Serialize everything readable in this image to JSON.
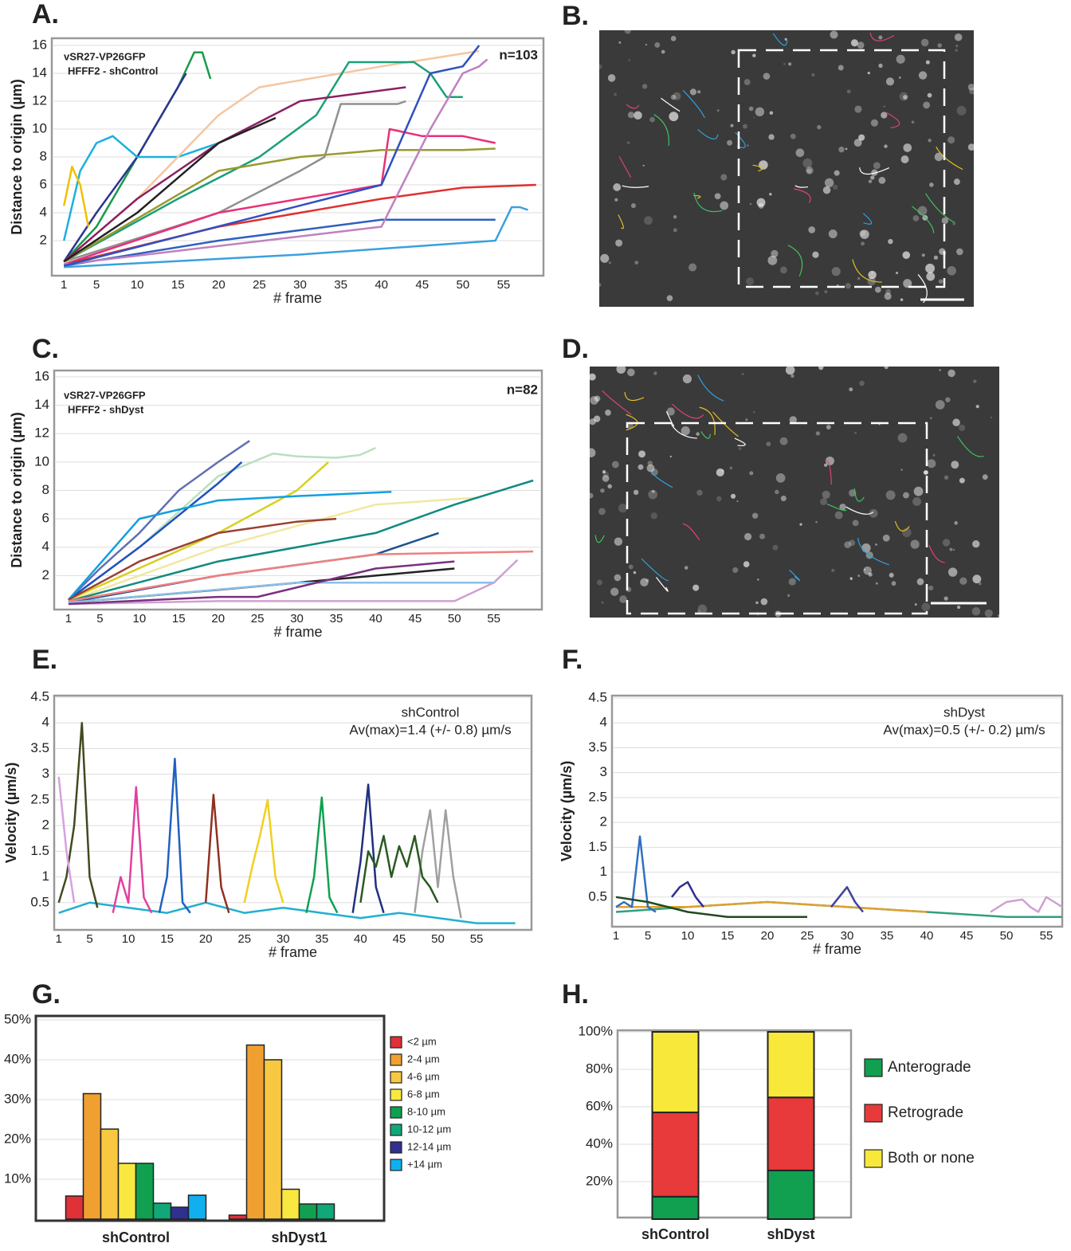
{
  "chart_data": [
    {
      "type": "line",
      "panel_label": "A.",
      "x_label": "# frame",
      "y_label": "Distance to origin (µm)",
      "annotations": [
        "vSR27-VP26GFP",
        "HFFF2 - shControl",
        "n=103"
      ],
      "xlim": [
        0,
        60
      ],
      "ylim": [
        0,
        16
      ],
      "xticks": [
        1,
        5,
        10,
        15,
        20,
        25,
        30,
        35,
        40,
        45,
        50,
        55
      ],
      "yticks": [
        2,
        4,
        6,
        8,
        10,
        12,
        14,
        16
      ],
      "grid": true,
      "series": [
        {
          "color": "#1a9a4a",
          "x": [
            1,
            5,
            10,
            15,
            17,
            18,
            19
          ],
          "values": [
            0.5,
            3,
            8,
            13,
            15.5,
            15.5,
            13.6
          ]
        },
        {
          "color": "#2c3590",
          "x": [
            1,
            5,
            10,
            14,
            16
          ],
          "values": [
            0.5,
            4,
            8,
            12,
            14
          ]
        },
        {
          "color": "#1ab0e0",
          "x": [
            1,
            3,
            5,
            7,
            10,
            15,
            20
          ],
          "values": [
            2,
            7,
            9,
            9.5,
            8,
            8,
            9
          ]
        },
        {
          "color": "#f5c6a0",
          "x": [
            1,
            10,
            20,
            25,
            30,
            40,
            52
          ],
          "values": [
            0.5,
            5,
            11,
            13,
            13.5,
            14.5,
            15.6
          ]
        },
        {
          "color": "#1aa07a",
          "x": [
            1,
            15,
            25,
            32,
            36,
            44,
            46,
            48,
            50
          ],
          "values": [
            0.5,
            5,
            8,
            11,
            14.8,
            14.8,
            14,
            12.3,
            12.3
          ]
        },
        {
          "color": "#909090",
          "x": [
            1,
            20,
            30,
            33,
            35,
            42,
            43
          ],
          "values": [
            0.5,
            4,
            7,
            8,
            11.8,
            11.8,
            12
          ]
        },
        {
          "color": "#e8307a",
          "x": [
            1,
            20,
            40,
            41,
            45,
            50,
            54
          ],
          "values": [
            0.3,
            4,
            6,
            10,
            9.5,
            9.5,
            9
          ]
        },
        {
          "color": "#9a9a30",
          "x": [
            1,
            20,
            30,
            40,
            50,
            54
          ],
          "values": [
            0.5,
            7,
            8,
            8.5,
            8.5,
            8.6
          ]
        },
        {
          "color": "#e03030",
          "x": [
            1,
            20,
            40,
            50,
            59
          ],
          "values": [
            0.3,
            3,
            5,
            5.8,
            6
          ]
        },
        {
          "color": "#8a2060",
          "x": [
            1,
            10,
            20,
            30,
            43
          ],
          "values": [
            0.5,
            5,
            9,
            12,
            13
          ]
        },
        {
          "color": "#3060c0",
          "x": [
            1,
            20,
            40,
            54
          ],
          "values": [
            0.2,
            2,
            3.5,
            3.5
          ]
        },
        {
          "color": "#3aa0e0",
          "x": [
            1,
            30,
            54,
            56,
            57,
            58
          ],
          "values": [
            0.1,
            1,
            2,
            4.4,
            4.4,
            4.2
          ]
        },
        {
          "color": "#c080c0",
          "x": [
            1,
            40,
            46,
            50,
            52,
            53
          ],
          "values": [
            0.3,
            3,
            10,
            14,
            14.5,
            15
          ]
        },
        {
          "color": "#222222",
          "x": [
            1,
            10,
            20,
            27
          ],
          "values": [
            0.5,
            4,
            9,
            10.8
          ]
        },
        {
          "color": "#3050c0",
          "x": [
            1,
            40,
            46,
            50,
            52
          ],
          "values": [
            0.2,
            6,
            14,
            14.5,
            16
          ]
        },
        {
          "color": "#f0c000",
          "x": [
            1,
            2,
            3,
            4
          ],
          "values": [
            4.5,
            7.3,
            6,
            3
          ]
        }
      ]
    },
    {
      "type": "image",
      "panel_label": "B."
    },
    {
      "type": "line",
      "panel_label": "C.",
      "x_label": "# frame",
      "y_label": "Distance to origin (µm)",
      "annotations": [
        "vSR27-VP26GFP",
        "HFFF2 - shDyst",
        "n=82"
      ],
      "xlim": [
        0,
        61
      ],
      "ylim": [
        0,
        16
      ],
      "xticks": [
        1,
        5,
        10,
        15,
        20,
        25,
        30,
        35,
        40,
        45,
        50,
        55
      ],
      "yticks": [
        2,
        4,
        6,
        8,
        10,
        12,
        14,
        16
      ],
      "grid": true,
      "series": [
        {
          "color": "#6070b0",
          "x": [
            1,
            5,
            10,
            15,
            20,
            24
          ],
          "values": [
            0.3,
            2.5,
            5,
            8,
            10,
            11.5
          ]
        },
        {
          "color": "#b8e0c0",
          "x": [
            1,
            10,
            20,
            27,
            30,
            35,
            38,
            40
          ],
          "values": [
            0.3,
            4,
            9,
            10.6,
            10.4,
            10.3,
            10.5,
            11
          ]
        },
        {
          "color": "#2050c0",
          "x": [
            1,
            10,
            20,
            23
          ],
          "values": [
            0.3,
            4,
            8.5,
            10
          ]
        },
        {
          "color": "#d8d020",
          "x": [
            1,
            20,
            30,
            34
          ],
          "values": [
            0.3,
            5,
            8,
            10
          ]
        },
        {
          "color": "#10a0e0",
          "x": [
            1,
            10,
            20,
            30,
            42
          ],
          "values": [
            0.3,
            6,
            7.3,
            7.6,
            7.9
          ]
        },
        {
          "color": "#f0e8a0",
          "x": [
            1,
            20,
            40,
            53
          ],
          "values": [
            0.2,
            4,
            7,
            7.5
          ]
        },
        {
          "color": "#108a80",
          "x": [
            1,
            20,
            40,
            50,
            60
          ],
          "values": [
            0.2,
            3,
            5,
            7,
            8.7
          ]
        },
        {
          "color": "#9a4030",
          "x": [
            1,
            10,
            20,
            30,
            35
          ],
          "values": [
            0.3,
            3,
            5,
            5.8,
            6
          ]
        },
        {
          "color": "#205090",
          "x": [
            1,
            20,
            40,
            48
          ],
          "values": [
            0.1,
            2,
            3.5,
            5
          ]
        },
        {
          "color": "#222222",
          "x": [
            1,
            20,
            40,
            50
          ],
          "values": [
            0.1,
            1,
            2,
            2.5
          ]
        },
        {
          "color": "#d0a0d0",
          "x": [
            1,
            20,
            50,
            55,
            58
          ],
          "values": [
            0,
            0.2,
            0.2,
            1.5,
            3.1
          ]
        },
        {
          "color": "#f08080",
          "x": [
            1,
            20,
            40,
            60
          ],
          "values": [
            0.2,
            2,
            3.5,
            3.7
          ]
        },
        {
          "color": "#8ac0e8",
          "x": [
            1,
            30,
            45,
            55
          ],
          "values": [
            0.1,
            1.5,
            1.5,
            1.5
          ]
        },
        {
          "color": "#7a3080",
          "x": [
            1,
            20,
            25,
            40,
            50
          ],
          "values": [
            0,
            0.5,
            0.5,
            2.5,
            3
          ]
        }
      ]
    },
    {
      "type": "image",
      "panel_label": "D."
    },
    {
      "type": "line",
      "panel_label": "E.",
      "x_label": "# frame",
      "y_label": "Velocity (µm/s)",
      "annotations": [
        "shControl",
        "Av(max)=1.4 (+/- 0.8) µm/s"
      ],
      "xlim": [
        0,
        62
      ],
      "ylim": [
        0,
        4.5
      ],
      "xticks": [
        1,
        5,
        10,
        15,
        20,
        25,
        30,
        35,
        40,
        45,
        50,
        55
      ],
      "yticks": [
        0.5,
        1,
        1.5,
        2,
        2.5,
        3,
        3.5,
        4,
        4.5
      ],
      "grid": true,
      "series": [
        {
          "color": "#20b0d0",
          "x": [
            1,
            5,
            10,
            15,
            20,
            25,
            30,
            35,
            40,
            45,
            50,
            55,
            60
          ],
          "values": [
            0.3,
            0.5,
            0.4,
            0.3,
            0.5,
            0.3,
            0.4,
            0.3,
            0.2,
            0.3,
            0.2,
            0.1,
            0.1
          ]
        },
        {
          "color": "#404a20",
          "x": [
            1,
            2,
            3,
            4,
            5,
            6
          ],
          "values": [
            0.5,
            1,
            2,
            4,
            1,
            0.4
          ]
        },
        {
          "color": "#e040a0",
          "x": [
            8,
            9,
            10,
            11,
            12,
            13
          ],
          "values": [
            0.3,
            1,
            0.5,
            2.75,
            0.6,
            0.3
          ]
        },
        {
          "color": "#2060c0",
          "x": [
            14,
            15,
            16,
            17,
            18
          ],
          "values": [
            0.3,
            1,
            3.3,
            0.5,
            0.3
          ]
        },
        {
          "color": "#10a050",
          "x": [
            33,
            34,
            35,
            36,
            37
          ],
          "values": [
            0.3,
            1,
            2.55,
            0.6,
            0.3
          ]
        },
        {
          "color": "#203080",
          "x": [
            39,
            40,
            41,
            42,
            43
          ],
          "values": [
            0.3,
            1.3,
            2.8,
            0.8,
            0.3
          ]
        },
        {
          "color": "#a0a0a0",
          "x": [
            47,
            48,
            49,
            50,
            51,
            52,
            53
          ],
          "values": [
            0.3,
            1.5,
            2.3,
            0.8,
            2.3,
            1,
            0.2
          ]
        },
        {
          "color": "#f0d020",
          "x": [
            25,
            26,
            27,
            28,
            29,
            30
          ],
          "values": [
            0.5,
            1.2,
            1.8,
            2.5,
            1,
            0.5
          ]
        },
        {
          "color": "#903020",
          "x": [
            20,
            21,
            22,
            23
          ],
          "values": [
            0.5,
            2.6,
            0.8,
            0.3
          ]
        },
        {
          "color": "#d8a0e0",
          "x": [
            1,
            2,
            3
          ],
          "values": [
            2.95,
            1.5,
            0.5
          ]
        },
        {
          "color": "#2a5a20",
          "x": [
            40,
            41,
            42,
            43,
            44,
            45,
            46,
            47,
            48,
            49,
            50
          ],
          "values": [
            0.5,
            1.5,
            1.2,
            1.8,
            1,
            1.6,
            1.2,
            1.8,
            1,
            0.8,
            0.5
          ]
        }
      ]
    },
    {
      "type": "line",
      "panel_label": "F.",
      "x_label": "# frame",
      "y_label": "Velocity (µm/s)",
      "annotations": [
        "shDyst",
        "Av(max)=0.5 (+/- 0.2) µm/s"
      ],
      "xlim": [
        0.5,
        57
      ],
      "ylim": [
        0,
        4.5
      ],
      "xticks": [
        1,
        5,
        10,
        15,
        20,
        25,
        30,
        35,
        40,
        45,
        50,
        55
      ],
      "yticks": [
        0.5,
        1,
        1.5,
        2,
        2.5,
        3,
        3.5,
        4,
        4.5
      ],
      "grid": true,
      "series": [
        {
          "color": "#30a080",
          "x": [
            1,
            10,
            20,
            30,
            40,
            50,
            57
          ],
          "values": [
            0.2,
            0.3,
            0.4,
            0.3,
            0.2,
            0.1,
            0.1
          ]
        },
        {
          "color": "#e0a030",
          "x": [
            1,
            10,
            20,
            30,
            40
          ],
          "values": [
            0.3,
            0.3,
            0.4,
            0.3,
            0.2
          ]
        },
        {
          "color": "#3070c0",
          "x": [
            1,
            2,
            3,
            4,
            5,
            6
          ],
          "values": [
            0.3,
            0.4,
            0.3,
            1.72,
            0.3,
            0.2
          ]
        },
        {
          "color": "#303090",
          "x": [
            8,
            9,
            10,
            11,
            12
          ],
          "values": [
            0.5,
            0.7,
            0.8,
            0.5,
            0.3
          ]
        },
        {
          "color": "#d0a0d0",
          "x": [
            48,
            50,
            52,
            53,
            54,
            55,
            56,
            57
          ],
          "values": [
            0.2,
            0.4,
            0.45,
            0.3,
            0.2,
            0.5,
            0.4,
            0.3
          ]
        },
        {
          "color": "#204a20",
          "x": [
            1,
            5,
            10,
            15,
            20,
            25
          ],
          "values": [
            0.5,
            0.4,
            0.2,
            0.1,
            0.1,
            0.1
          ]
        },
        {
          "color": "#4040a0",
          "x": [
            28,
            29,
            30,
            31,
            32
          ],
          "values": [
            0.3,
            0.5,
            0.7,
            0.4,
            0.2
          ]
        }
      ]
    },
    {
      "type": "bar",
      "panel_label": "G.",
      "categories": [
        "shControl",
        "shDyst1"
      ],
      "ylim": [
        0,
        50
      ],
      "yticks": [
        {
          "value": 10,
          "label": "10%"
        },
        {
          "value": 20,
          "label": "20%"
        },
        {
          "value": 30,
          "label": "30%"
        },
        {
          "value": 40,
          "label": "40%"
        },
        {
          "value": 50,
          "label": "50%"
        }
      ],
      "grid": true,
      "series": [
        {
          "name": "<2 µm",
          "color": "#e03038",
          "values": [
            5.8,
            1
          ]
        },
        {
          "name": "2-4 µm",
          "color": "#f0a030",
          "values": [
            31.5,
            43.7
          ]
        },
        {
          "name": "4-6 µm",
          "color": "#f8c840",
          "values": [
            22.6,
            40
          ]
        },
        {
          "name": "6-8 µm",
          "color": "#f8e840",
          "values": [
            14,
            7.5
          ]
        },
        {
          "name": "8-10 µm",
          "color": "#10a050",
          "values": [
            14,
            3.8
          ]
        },
        {
          "name": "10-12 µm",
          "color": "#10a878",
          "values": [
            4,
            3.8
          ]
        },
        {
          "name": "12-14 µm",
          "color": "#303090",
          "values": [
            3,
            0
          ]
        },
        {
          "name": "+14 µm",
          "color": "#10b0f0",
          "values": [
            6,
            0
          ]
        }
      ]
    },
    {
      "type": "stacked_bar",
      "panel_label": "H.",
      "categories": [
        "shControl",
        "shDyst"
      ],
      "ylim": [
        0,
        100
      ],
      "yticks": [
        {
          "value": 20,
          "label": "20%"
        },
        {
          "value": 40,
          "label": "40%"
        },
        {
          "value": 60,
          "label": "60%"
        },
        {
          "value": 80,
          "label": "80%"
        },
        {
          "value": 100,
          "label": "100%"
        }
      ],
      "grid": true,
      "series": [
        {
          "name": "Anterograde",
          "color": "#10a050",
          "values": [
            12,
            26
          ]
        },
        {
          "name": "Retrograde",
          "color": "#e83a3a",
          "values": [
            45,
            39
          ]
        },
        {
          "name": "Both or none",
          "color": "#f8e83a",
          "values": [
            43,
            35
          ]
        }
      ]
    }
  ]
}
